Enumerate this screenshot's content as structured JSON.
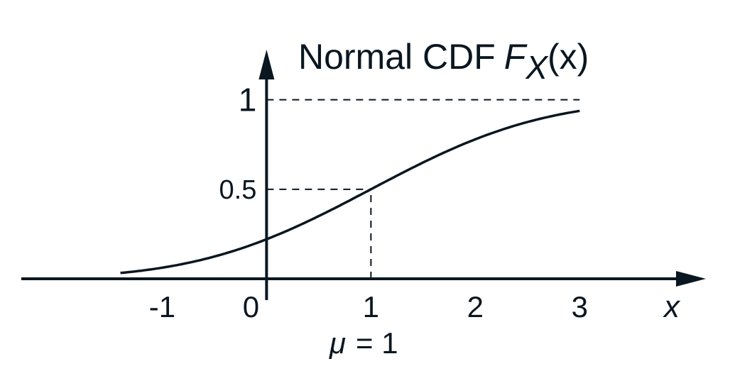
{
  "chart_data": {
    "type": "line",
    "title": "Normal CDF",
    "title_symbol": "F",
    "title_subscript": "X",
    "title_argument": "(x)",
    "xlabel": "x",
    "x_ticks": [
      {
        "value": -1,
        "label": "-1"
      },
      {
        "value": 0,
        "label": "0"
      },
      {
        "value": 1,
        "label": "1"
      },
      {
        "value": 2,
        "label": "2"
      },
      {
        "value": 3,
        "label": "3"
      }
    ],
    "y_ticks": [
      {
        "value": 0.5,
        "label": "0.5"
      },
      {
        "value": 1,
        "label": "1"
      }
    ],
    "mean_annotation": {
      "symbol": "μ",
      "text": "= 1"
    },
    "mean": 1,
    "sd": 1.3,
    "x_range_curve": [
      -1.4,
      3.0
    ],
    "xlim": [
      -2.35,
      4.25
    ],
    "ylim": [
      0,
      1.28
    ],
    "grid": false,
    "reference_lines": [
      {
        "from_x": 0,
        "to_x": 3,
        "y": 1,
        "orientation": "horizontal"
      },
      {
        "from_x": 0,
        "to_x": 1,
        "y": 0.5,
        "orientation": "horizontal"
      },
      {
        "x": 1,
        "from_y": 0,
        "to_y": 0.5,
        "orientation": "vertical"
      }
    ],
    "colors": {
      "ink": "#0a1620",
      "background": "#ffffff"
    }
  }
}
